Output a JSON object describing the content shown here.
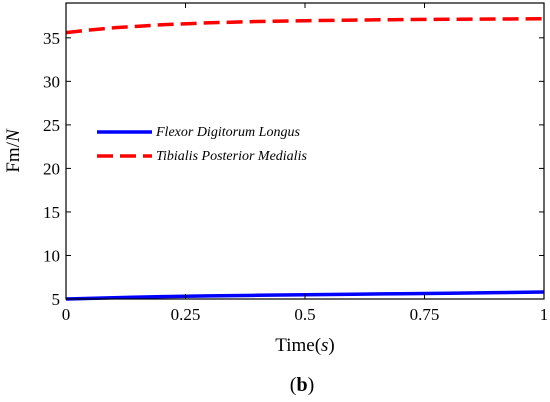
{
  "chart_data": {
    "type": "line",
    "title": "",
    "panel_label": {
      "open": "(",
      "letter": "b",
      "close": ")"
    },
    "xlabel": {
      "text": "Time",
      "unit": "s"
    },
    "ylabel": {
      "text": "Fm/",
      "unit": "N"
    },
    "xlim": [
      0,
      1
    ],
    "ylim": [
      5,
      39
    ],
    "x_ticks": [
      0,
      0.25,
      0.5,
      0.75,
      1
    ],
    "x_tick_labels": [
      "0",
      "0.25",
      "0.5",
      "0.75",
      "1"
    ],
    "y_ticks": [
      5,
      10,
      15,
      20,
      25,
      30,
      35
    ],
    "y_tick_labels": [
      "5",
      "10",
      "15",
      "20",
      "25",
      "30",
      "35"
    ],
    "grid": false,
    "legend_position": "center-left",
    "series": [
      {
        "name": "Flexor Digitorum Longus",
        "color": "#0000ff",
        "style": "solid",
        "x": [
          0,
          0.1,
          0.2,
          0.3,
          0.4,
          0.5,
          0.6,
          0.7,
          0.8,
          0.9,
          1.0
        ],
        "y": [
          5.0,
          5.15,
          5.27,
          5.36,
          5.43,
          5.49,
          5.55,
          5.61,
          5.67,
          5.73,
          5.8
        ]
      },
      {
        "name": "Tibialis Posterior Medialis",
        "color": "#ff0000",
        "style": "dashed",
        "x": [
          0,
          0.05,
          0.1,
          0.2,
          0.3,
          0.4,
          0.5,
          0.6,
          0.7,
          0.8,
          0.9,
          1.0
        ],
        "y": [
          35.6,
          35.9,
          36.15,
          36.5,
          36.72,
          36.87,
          36.97,
          37.04,
          37.09,
          37.13,
          37.16,
          37.18
        ]
      }
    ]
  }
}
